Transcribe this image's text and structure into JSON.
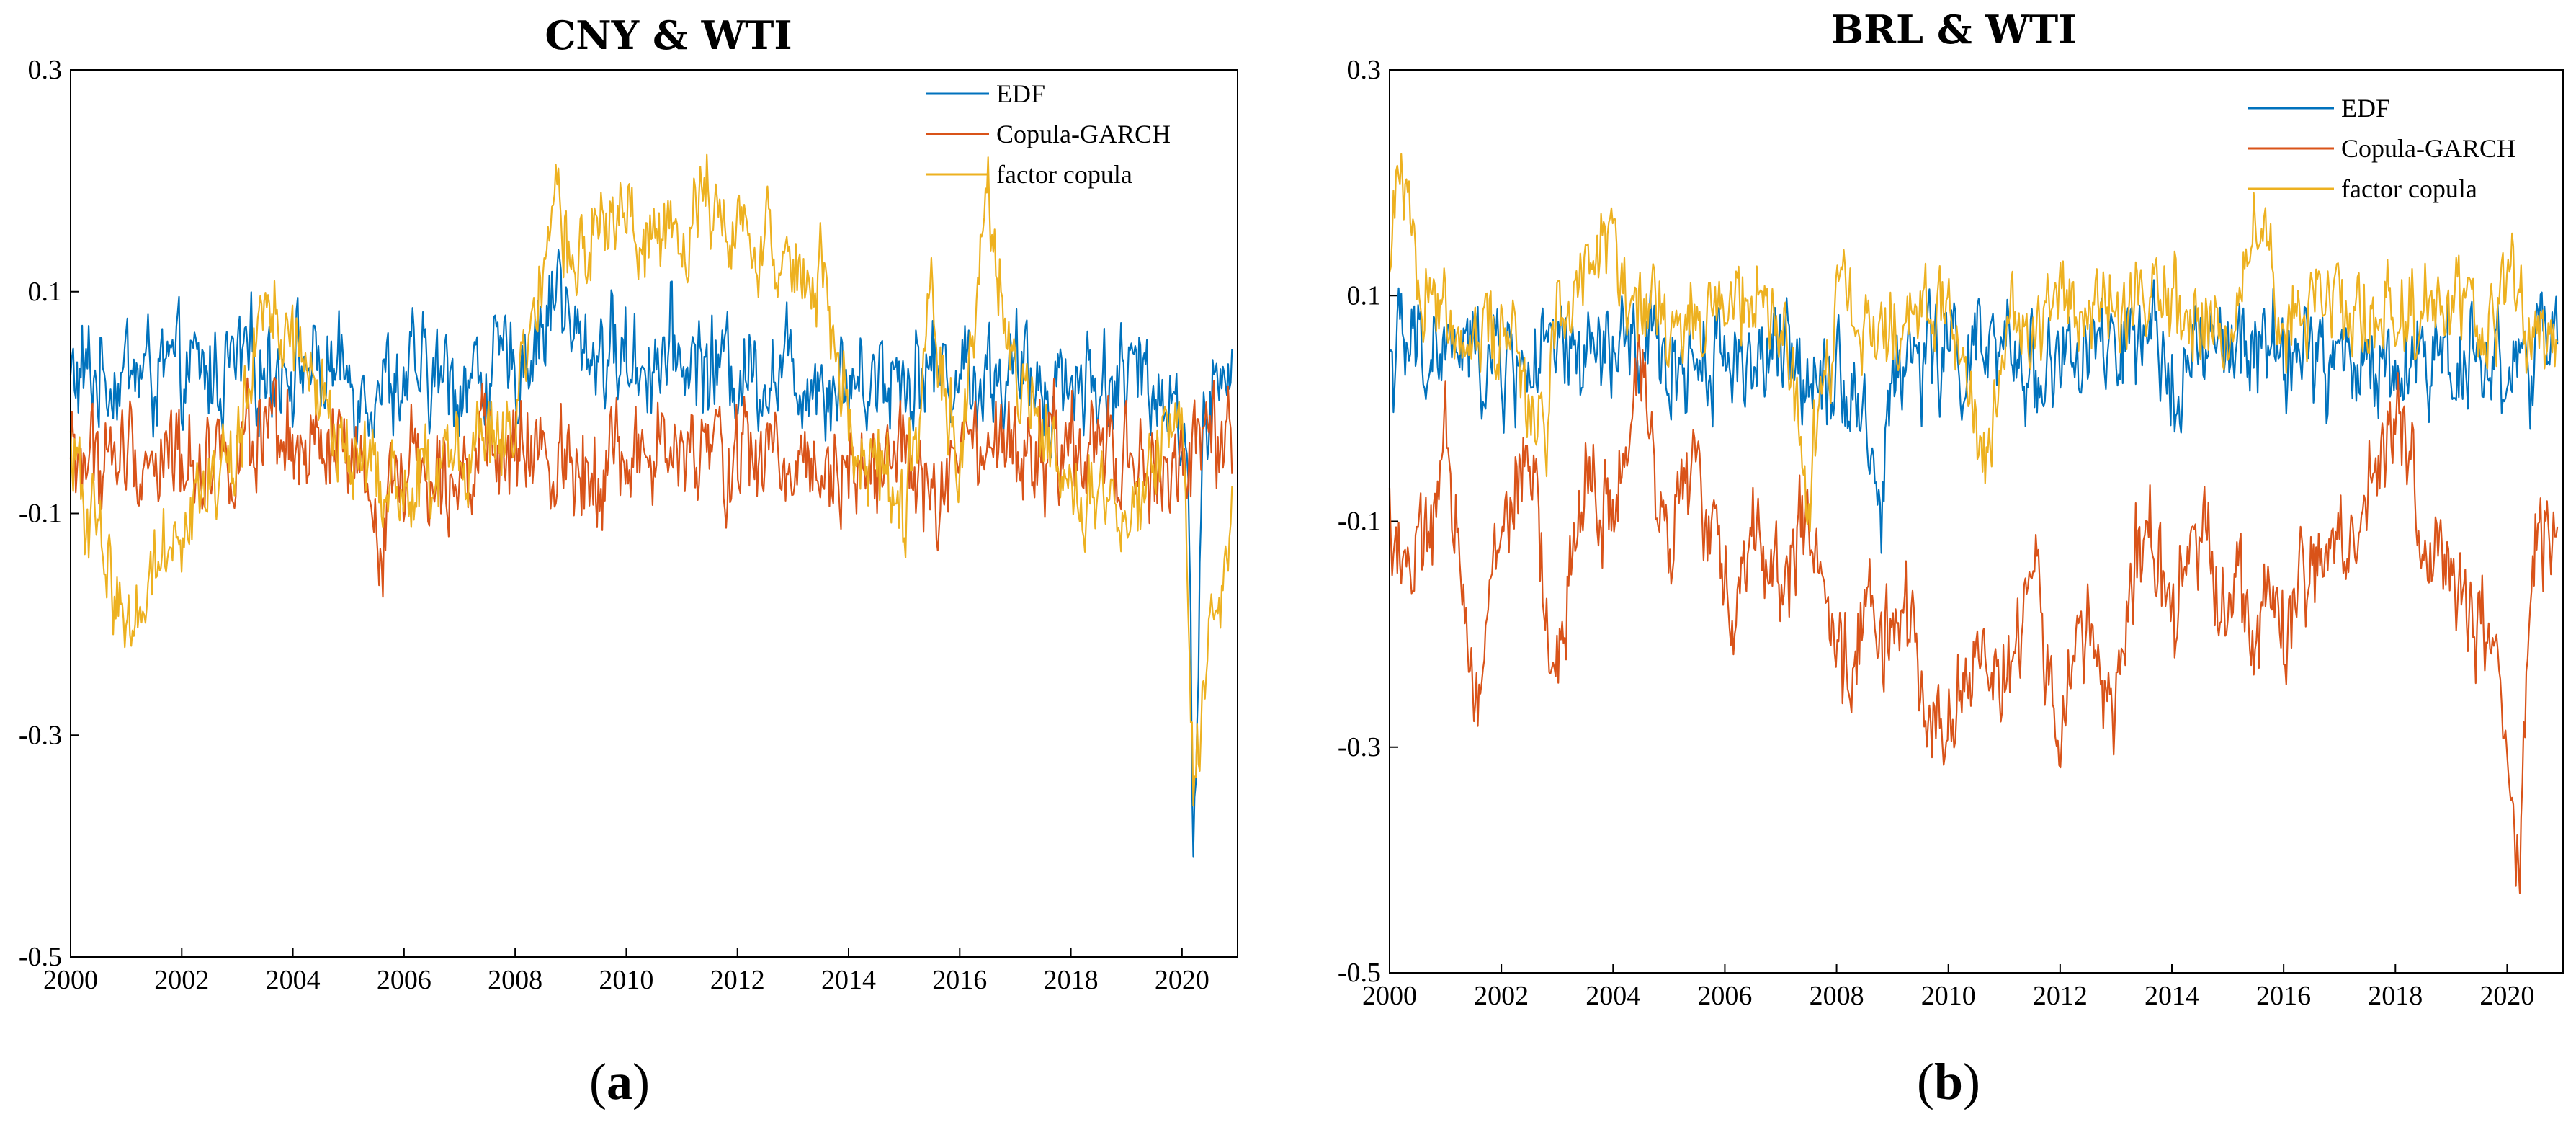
{
  "chart_data": [
    {
      "type": "line",
      "title": "CNY & WTI",
      "caption": "(a)",
      "caption_letter": "a",
      "xlim": [
        2000,
        2021
      ],
      "ylim": [
        -0.5,
        0.3
      ],
      "xticks": [
        2000,
        2002,
        2004,
        2006,
        2008,
        2010,
        2012,
        2014,
        2016,
        2018,
        2020
      ],
      "xtick_labels": [
        "2000",
        "2002",
        "2004",
        "2006",
        "2008",
        "2010",
        "2012",
        "2014",
        "2016",
        "2018",
        "2020"
      ],
      "yticks": [
        0.3,
        0.1,
        -0.1,
        -0.3,
        -0.5
      ],
      "ytick_labels": [
        "0.3",
        "0.1",
        "-0.1",
        "-0.3",
        "-0.5"
      ],
      "legend_position": "top-right",
      "grid": false,
      "series": [
        {
          "name": "EDF",
          "color": "#0072BD",
          "x": [
            2000.0,
            2001.0,
            2002.0,
            2003.0,
            2004.0,
            2005.0,
            2006.0,
            2007.0,
            2008.0,
            2008.6,
            2008.8,
            2009.0,
            2009.5,
            2010.0,
            2011.0,
            2012.0,
            2013.0,
            2014.0,
            2015.0,
            2016.0,
            2017.0,
            2018.0,
            2019.0,
            2019.8,
            2020.1,
            2020.2,
            2020.4,
            2020.9
          ],
          "y": [
            0.02,
            0.03,
            0.02,
            0.03,
            0.04,
            0.02,
            0.02,
            0.02,
            0.03,
            0.08,
            0.12,
            0.05,
            0.05,
            0.04,
            0.04,
            0.03,
            0.03,
            0.02,
            0.03,
            0.03,
            0.02,
            0.02,
            0.02,
            0.02,
            -0.05,
            -0.39,
            0.0,
            0.02
          ]
        },
        {
          "name": "Copula-GARCH",
          "color": "#D95319",
          "x": [
            2000.0,
            2001.0,
            2002.0,
            2003.0,
            2004.0,
            2005.0,
            2005.5,
            2006.0,
            2007.0,
            2008.0,
            2009.0,
            2010.0,
            2011.0,
            2012.0,
            2013.0,
            2014.0,
            2015.0,
            2015.6,
            2016.0,
            2017.0,
            2018.0,
            2019.0,
            2019.6,
            2020.0,
            2020.9
          ],
          "y": [
            -0.05,
            -0.05,
            -0.05,
            -0.04,
            -0.05,
            -0.05,
            -0.12,
            -0.05,
            -0.05,
            -0.05,
            -0.05,
            -0.05,
            -0.05,
            -0.05,
            -0.05,
            -0.05,
            -0.05,
            -0.1,
            -0.05,
            -0.05,
            -0.05,
            -0.05,
            -0.08,
            -0.04,
            -0.05
          ]
        },
        {
          "name": "factor copula",
          "color": "#EDB120",
          "x": [
            2000.0,
            2000.5,
            2001.0,
            2002.0,
            2003.0,
            2003.5,
            2004.0,
            2005.0,
            2006.0,
            2007.0,
            2008.0,
            2008.8,
            2009.0,
            2009.5,
            2010.0,
            2011.0,
            2011.6,
            2012.0,
            2012.5,
            2013.0,
            2013.5,
            2014.0,
            2015.0,
            2015.5,
            2016.0,
            2016.5,
            2017.0,
            2018.0,
            2019.0,
            2019.5,
            2020.0,
            2020.2,
            2020.9
          ],
          "y": [
            -0.05,
            -0.12,
            -0.2,
            -0.1,
            -0.05,
            0.1,
            0.05,
            -0.05,
            -0.08,
            -0.05,
            -0.02,
            0.18,
            0.12,
            0.15,
            0.17,
            0.14,
            0.2,
            0.15,
            0.16,
            0.1,
            0.12,
            -0.02,
            -0.1,
            0.08,
            -0.05,
            0.18,
            0.02,
            -0.08,
            -0.12,
            -0.05,
            -0.04,
            -0.34,
            -0.08
          ]
        }
      ]
    },
    {
      "type": "line",
      "title": "BRL & WTI",
      "caption": "(b)",
      "caption_letter": "b",
      "xlim": [
        2000,
        2021
      ],
      "ylim": [
        -0.5,
        0.3
      ],
      "xticks": [
        2000,
        2002,
        2004,
        2006,
        2008,
        2010,
        2012,
        2014,
        2016,
        2018,
        2020
      ],
      "xtick_labels": [
        "2000",
        "2002",
        "2004",
        "2006",
        "2008",
        "2010",
        "2012",
        "2014",
        "2016",
        "2018",
        "2020"
      ],
      "yticks": [
        0.3,
        0.1,
        -0.1,
        -0.3,
        -0.5
      ],
      "ytick_labels": [
        "0.3",
        "0.1",
        "-0.1",
        "-0.3",
        "-0.5"
      ],
      "legend_position": "top-right",
      "grid": false,
      "series": [
        {
          "name": "EDF",
          "color": "#0072BD",
          "x": [
            2000.0,
            2001.0,
            2002.0,
            2003.0,
            2004.0,
            2005.0,
            2006.0,
            2007.0,
            2008.0,
            2008.5,
            2008.8,
            2009.0,
            2010.0,
            2011.0,
            2012.0,
            2013.0,
            2014.0,
            2015.0,
            2016.0,
            2017.0,
            2018.0,
            2019.0,
            2020.0,
            2020.9
          ],
          "y": [
            0.05,
            0.05,
            0.04,
            0.04,
            0.05,
            0.04,
            0.05,
            0.04,
            0.04,
            0.0,
            -0.1,
            0.04,
            0.05,
            0.04,
            0.04,
            0.05,
            0.04,
            0.05,
            0.05,
            0.04,
            0.04,
            0.05,
            0.04,
            0.05
          ]
        },
        {
          "name": "Copula-GARCH",
          "color": "#D95319",
          "x": [
            2000.0,
            2000.5,
            2001.0,
            2001.6,
            2002.0,
            2002.5,
            2003.0,
            2003.5,
            2004.0,
            2004.5,
            2005.0,
            2005.5,
            2006.0,
            2006.5,
            2007.0,
            2007.5,
            2008.0,
            2008.5,
            2009.0,
            2009.5,
            2010.0,
            2010.5,
            2011.0,
            2011.5,
            2012.0,
            2012.5,
            2013.0,
            2013.5,
            2014.0,
            2014.5,
            2015.0,
            2015.5,
            2016.0,
            2016.5,
            2017.0,
            2017.5,
            2018.0,
            2018.5,
            2019.0,
            2019.5,
            2020.0,
            2020.2,
            2020.5,
            2020.9
          ],
          "y": [
            -0.1,
            -0.15,
            -0.05,
            -0.25,
            -0.1,
            -0.05,
            -0.25,
            -0.05,
            -0.1,
            0.02,
            -0.1,
            -0.05,
            -0.18,
            -0.1,
            -0.15,
            -0.1,
            -0.25,
            -0.18,
            -0.2,
            -0.22,
            -0.3,
            -0.2,
            -0.25,
            -0.15,
            -0.28,
            -0.2,
            -0.25,
            -0.1,
            -0.2,
            -0.1,
            -0.15,
            -0.18,
            -0.2,
            -0.15,
            -0.12,
            -0.1,
            0.02,
            -0.12,
            -0.15,
            -0.2,
            -0.28,
            -0.42,
            -0.1,
            -0.15
          ]
        },
        {
          "name": "factor copula",
          "color": "#EDB120",
          "x": [
            2000.0,
            2000.2,
            2000.5,
            2001.0,
            2002.0,
            2002.8,
            2003.0,
            2004.0,
            2004.5,
            2005.0,
            2006.0,
            2007.0,
            2007.5,
            2008.0,
            2008.5,
            2009.0,
            2010.0,
            2010.6,
            2011.0,
            2012.0,
            2013.0,
            2014.0,
            2015.0,
            2015.5,
            2016.0,
            2017.0,
            2018.0,
            2019.0,
            2019.5,
            2020.0,
            2020.9
          ],
          "y": [
            0.1,
            0.25,
            0.12,
            0.08,
            0.07,
            -0.02,
            0.1,
            0.15,
            0.08,
            0.07,
            0.09,
            0.08,
            -0.08,
            0.1,
            0.05,
            0.08,
            0.09,
            -0.05,
            0.07,
            0.1,
            0.08,
            0.09,
            0.08,
            0.18,
            0.07,
            0.09,
            0.08,
            0.1,
            0.07,
            0.1,
            0.05
          ]
        }
      ]
    }
  ]
}
